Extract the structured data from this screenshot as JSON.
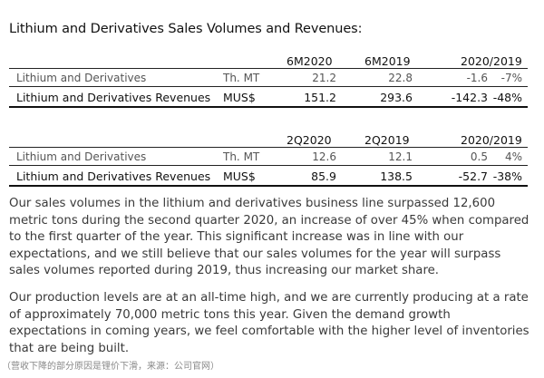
{
  "title": "Lithium and Derivatives Sales Volumes and Revenues:",
  "table1": {
    "headers": [
      "6M2020",
      "6M2019",
      "2020/2019"
    ],
    "rows": [
      {
        "label": "Lithium and Derivatives",
        "unit": "Th. MT",
        "v1": "21.2",
        "v2": "22.8",
        "diff": "-1.6",
        "pct": "-7%"
      },
      {
        "label": "Lithium and Derivatives Revenues",
        "unit": "MUS$",
        "v1": "151.2",
        "v2": "293.6",
        "diff": "-142.3",
        "pct": "-48%"
      }
    ]
  },
  "table2": {
    "headers": [
      "2Q2020",
      "2Q2019",
      "2020/2019"
    ],
    "rows": [
      {
        "label": "Lithium and Derivatives",
        "unit": "Th. MT",
        "v1": "12.6",
        "v2": "12.1",
        "diff": "0.5",
        "pct": "4%"
      },
      {
        "label": "Lithium and Derivatives Revenues",
        "unit": "MUS$",
        "v1": "85.9",
        "v2": "138.5",
        "diff": "-52.7",
        "pct": "-38%"
      }
    ]
  },
  "paragraphs": [
    "Our sales volumes in the lithium and derivatives business line surpassed 12,600 metric tons during the second quarter 2020, an increase of over 45% when compared to the first quarter of the year. This significant increase was in line with our expectations, and we still believe that our sales volumes for the year will surpass sales volumes reported during 2019, thus increasing our market share.",
    "Our production levels are at an all-time high, and we are currently producing at a rate of approximately 70,000 metric tons this year. Given the demand growth expectations in coming years, we feel comfortable with the higher level of inventories that are being built."
  ],
  "footnote": "（营收下降的部分原因是锂价下滑，来源：公司官网）"
}
